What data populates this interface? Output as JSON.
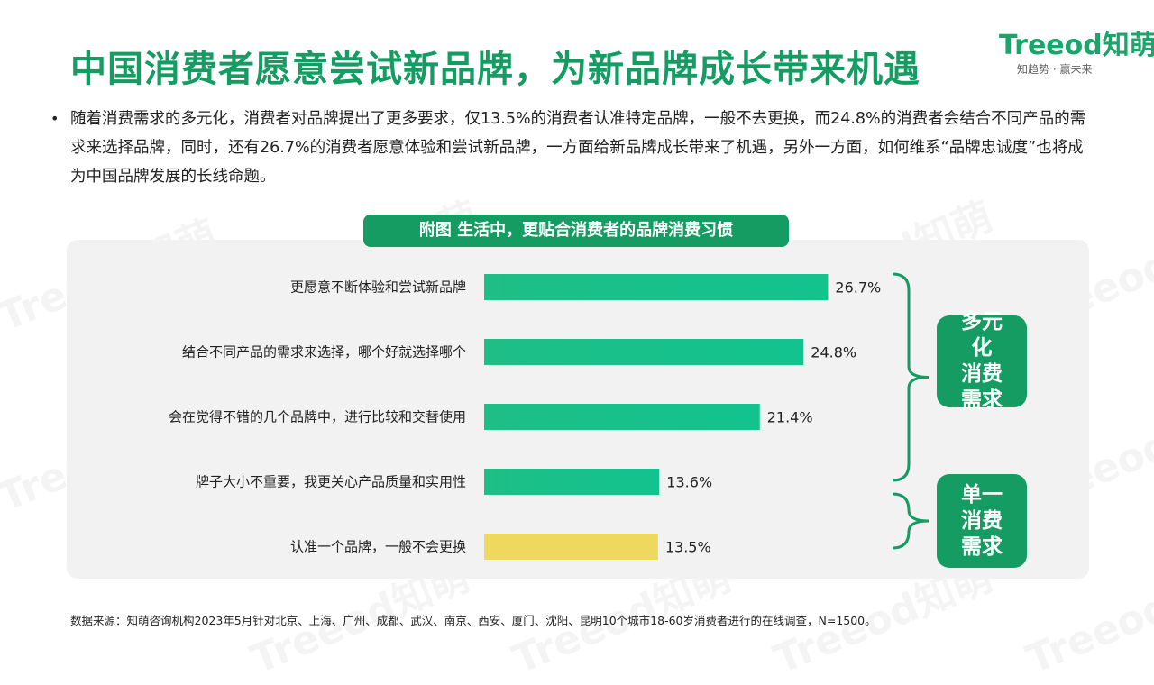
{
  "header": {
    "title": "中国消费者愿意尝试新品牌，为新品牌成长带来机遇",
    "logo_brand": "Treeod知萌",
    "logo_slogan": "知趋势 · 赢未来"
  },
  "intro": {
    "bullet": "•",
    "text": "随着消费需求的多元化，消费者对品牌提出了更多要求，仅13.5%的消费者认准特定品牌，一般不去更换，而24.8%的消费者会结合不同产品的需求来选择品牌，同时，还有26.7%的消费者愿意体验和尝试新品牌，一方面给新品牌成长带来了机遇，另外一方面，如何维系“品牌忠诚度”也将成为中国品牌发展的长线命题。"
  },
  "chart_data": {
    "type": "bar",
    "orientation": "horizontal",
    "title": "附图 生活中，更贴合消费者的品牌消费习惯",
    "categories": [
      "更愿意不断体验和尝试新品牌",
      "结合不同产品的需求来选择，哪个好就选择哪个",
      "会在觉得不错的几个品牌中，进行比较和交替使用",
      "牌子大小不重要，我更关心产品质量和实用性",
      "认准一个品牌，一般不会更换"
    ],
    "values": [
      26.7,
      24.8,
      21.4,
      13.6,
      13.5
    ],
    "value_labels": [
      "26.7%",
      "24.8%",
      "21.4%",
      "13.6%",
      "13.5%"
    ],
    "unit": "%",
    "xlim": [
      0,
      35
    ],
    "colors": {
      "bar_gradient_start": "#1EBE86",
      "bar_gradient_end": "#12C38E",
      "highlight_bar": "#EFD85E",
      "accent": "#149C62"
    },
    "highlight_index": 4,
    "groups": [
      {
        "label": "多元化消费需求",
        "lines": [
          "多元化",
          "消费",
          "需求"
        ],
        "covers": [
          0,
          1,
          2,
          3
        ]
      },
      {
        "label": "单一消费需求",
        "lines": [
          "单一",
          "消费",
          "需求"
        ],
        "covers": [
          4
        ]
      }
    ]
  },
  "footer": {
    "source": "数据来源：知萌咨询机构2023年5月针对北京、上海、广州、成都、武汉、南京、西安、厦门、沈阳、昆明10个城市18-60岁消费者进行的在线调查，N=1500。"
  },
  "watermark_text": "Treeod知萌"
}
